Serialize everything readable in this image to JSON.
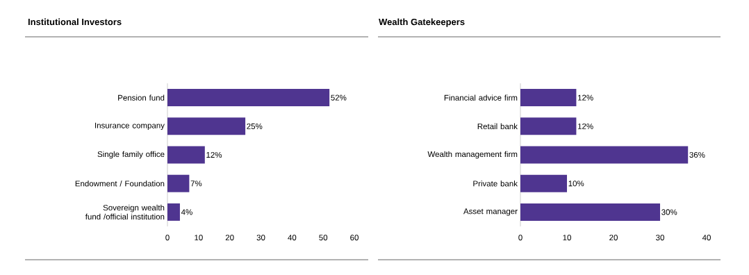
{
  "chart_data": [
    {
      "type": "bar",
      "orientation": "horizontal",
      "title": "Institutional Investors",
      "categories": [
        "Pension fund",
        "Insurance company",
        "Single family office",
        "Endowment / Foundation",
        "Sovereign wealth fund /official institution"
      ],
      "values": [
        52,
        25,
        12,
        7,
        4
      ],
      "value_labels": [
        "52%",
        "25%",
        "12%",
        "7%",
        "4%"
      ],
      "color": "#4f3590",
      "xlim": [
        0,
        60
      ],
      "xticks": [
        0,
        10,
        20,
        30,
        40,
        50,
        60
      ]
    },
    {
      "type": "bar",
      "orientation": "horizontal",
      "title": "Wealth Gatekeepers",
      "categories": [
        "Financial advice firm",
        "Retail bank",
        "Wealth management firm",
        "Private bank",
        "Asset manager"
      ],
      "values": [
        12,
        12,
        36,
        10,
        30
      ],
      "value_labels": [
        "12%",
        "12%",
        "36%",
        "10%",
        "30%"
      ],
      "color": "#4f3590",
      "xlim": [
        0,
        40
      ],
      "xticks": [
        0,
        10,
        20,
        30,
        40
      ]
    }
  ]
}
